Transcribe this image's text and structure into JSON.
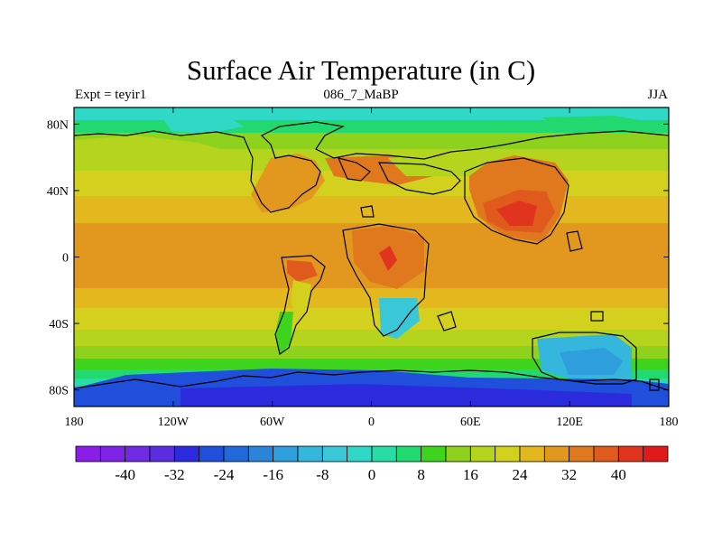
{
  "title": "Surface Air Temperature (in C)",
  "subtitle_left": "Expt = teyir1",
  "subtitle_center": "086_7_MaBP",
  "subtitle_right": "JJA",
  "map": {
    "projection": "cylindrical equidistant",
    "lon_range": [
      -180,
      180
    ],
    "lat_range": [
      -90,
      90
    ],
    "x_ticks": [
      {
        "value": -180,
        "label": "180"
      },
      {
        "value": -120,
        "label": "120W"
      },
      {
        "value": -60,
        "label": "60W"
      },
      {
        "value": 0,
        "label": "0"
      },
      {
        "value": 60,
        "label": "60E"
      },
      {
        "value": 120,
        "label": "120E"
      },
      {
        "value": 180,
        "label": "180"
      }
    ],
    "y_ticks": [
      {
        "value": 80,
        "label": "80N"
      },
      {
        "value": 40,
        "label": "40N"
      },
      {
        "value": 0,
        "label": "0"
      },
      {
        "value": -40,
        "label": "40S"
      },
      {
        "value": -80,
        "label": "80S"
      }
    ]
  },
  "colorbar": {
    "levels": [
      -44,
      -40,
      -36,
      -32,
      -28,
      -24,
      -20,
      -16,
      -12,
      -8,
      -4,
      0,
      4,
      8,
      12,
      16,
      20,
      24,
      28,
      32,
      36,
      40,
      44
    ],
    "colors": [
      "#8a1ee8",
      "#7d22e6",
      "#6f2ae2",
      "#5a2ee0",
      "#2b2bdd",
      "#1f4fdb",
      "#1f6ad8",
      "#2a84d8",
      "#2e9edc",
      "#35b6dc",
      "#3ac8d8",
      "#30d8c8",
      "#28dca6",
      "#22d970",
      "#3ed41e",
      "#8ed21e",
      "#b4d41e",
      "#d4d01e",
      "#e2b81e",
      "#e2981e",
      "#e0781e",
      "#e05a1e",
      "#e0341e",
      "#e01a1a"
    ],
    "labels": [
      {
        "value": -40,
        "label": "-40"
      },
      {
        "value": -32,
        "label": "-32"
      },
      {
        "value": -24,
        "label": "-24"
      },
      {
        "value": -16,
        "label": "-16"
      },
      {
        "value": -8,
        "label": "-8"
      },
      {
        "value": 0,
        "label": "0"
      },
      {
        "value": 8,
        "label": "8"
      },
      {
        "value": 16,
        "label": "16"
      },
      {
        "value": 24,
        "label": "24"
      },
      {
        "value": 32,
        "label": "32"
      },
      {
        "value": 40,
        "label": "40"
      }
    ]
  }
}
